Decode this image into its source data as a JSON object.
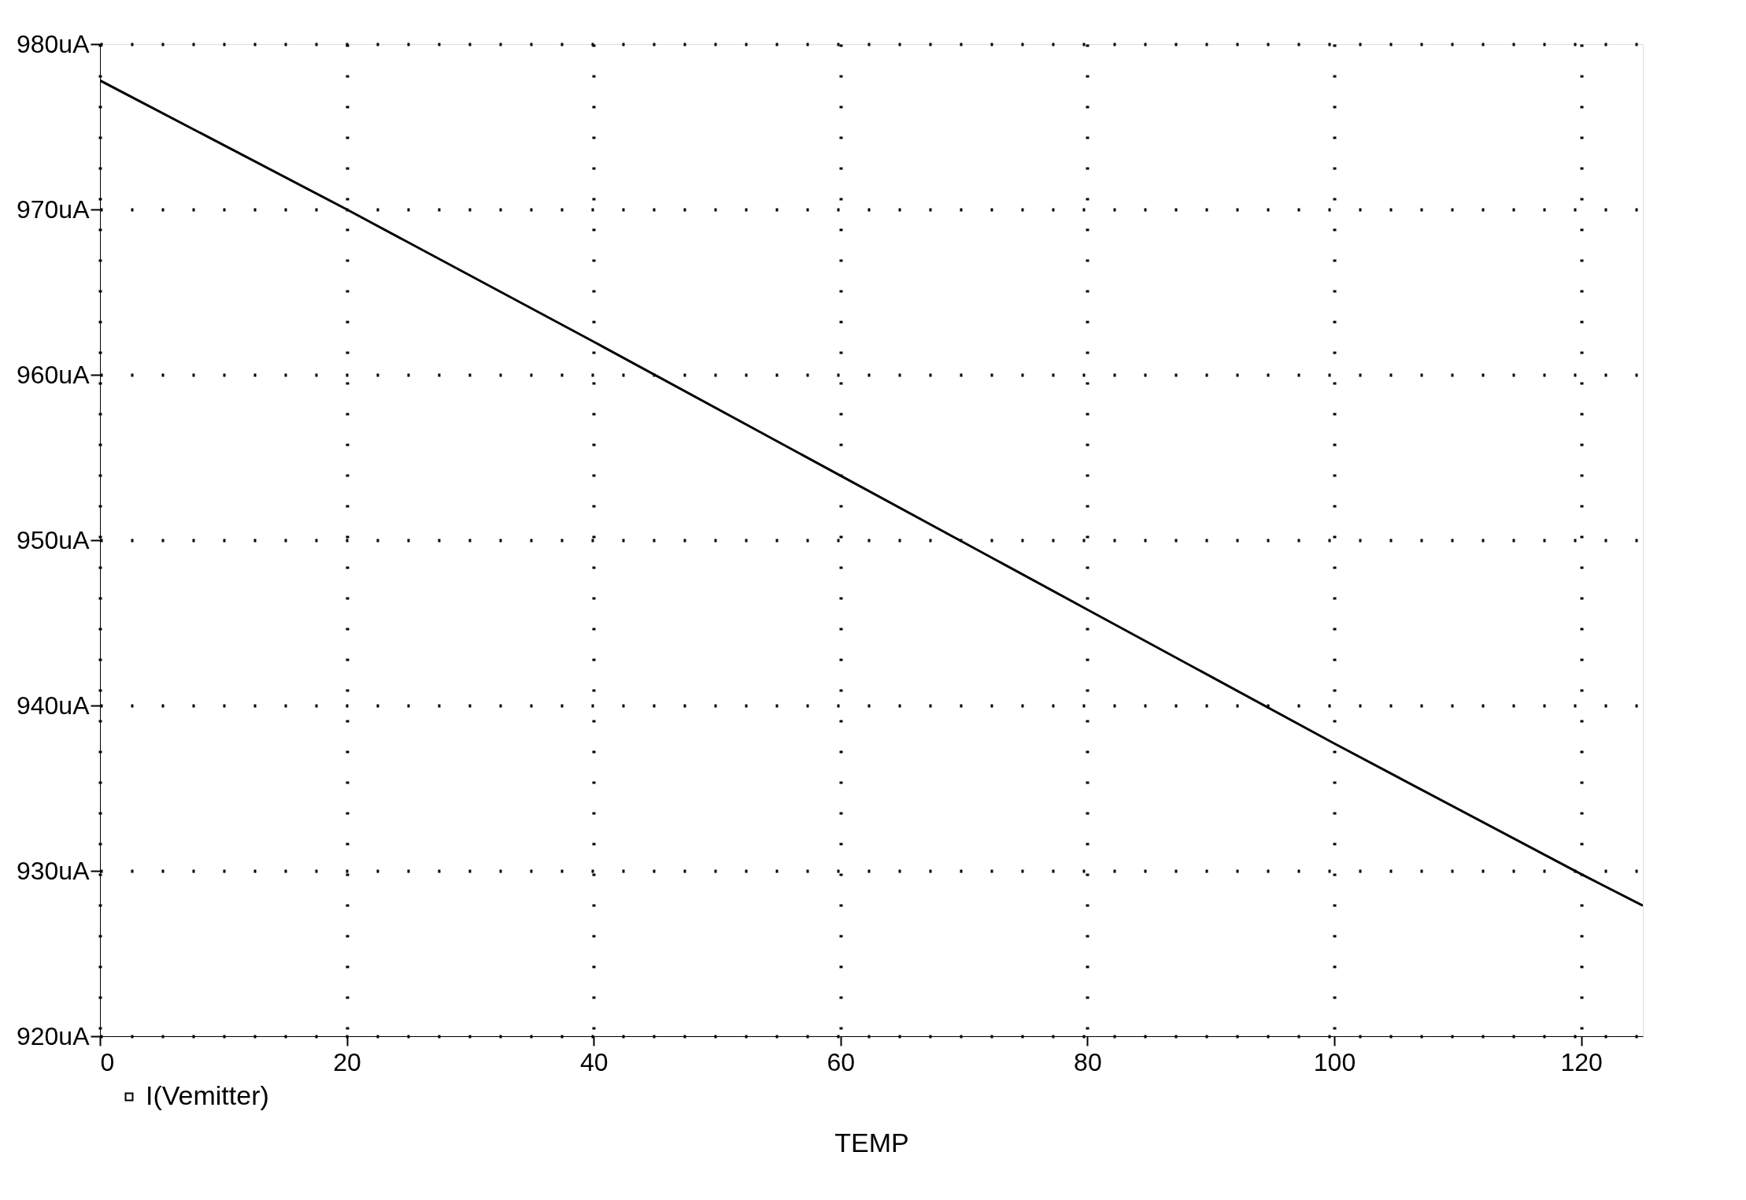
{
  "chart_data": {
    "type": "line",
    "xlabel": "TEMP",
    "x": [
      0,
      20,
      40,
      60,
      80,
      100,
      120,
      125
    ],
    "series": [
      {
        "name": "I(Vemitter)",
        "color": "#000000",
        "values": [
          977.8,
          970.0,
          962.0,
          953.9,
          945.8,
          937.7,
          929.8,
          927.9
        ]
      }
    ],
    "xlim": [
      0,
      125
    ],
    "xticks": [
      0,
      20,
      40,
      60,
      80,
      100,
      120
    ],
    "ylim": [
      920,
      980
    ],
    "yticks": [
      {
        "value": 920,
        "label": "920uA"
      },
      {
        "value": 930,
        "label": "930uA"
      },
      {
        "value": 940,
        "label": "940uA"
      },
      {
        "value": 950,
        "label": "950uA"
      },
      {
        "value": 960,
        "label": "960uA"
      },
      {
        "value": 970,
        "label": "970uA"
      },
      {
        "value": 980,
        "label": "980uA"
      }
    ],
    "grid": true,
    "legend": "bottom left",
    "marker": "none",
    "line_style": "solid"
  }
}
